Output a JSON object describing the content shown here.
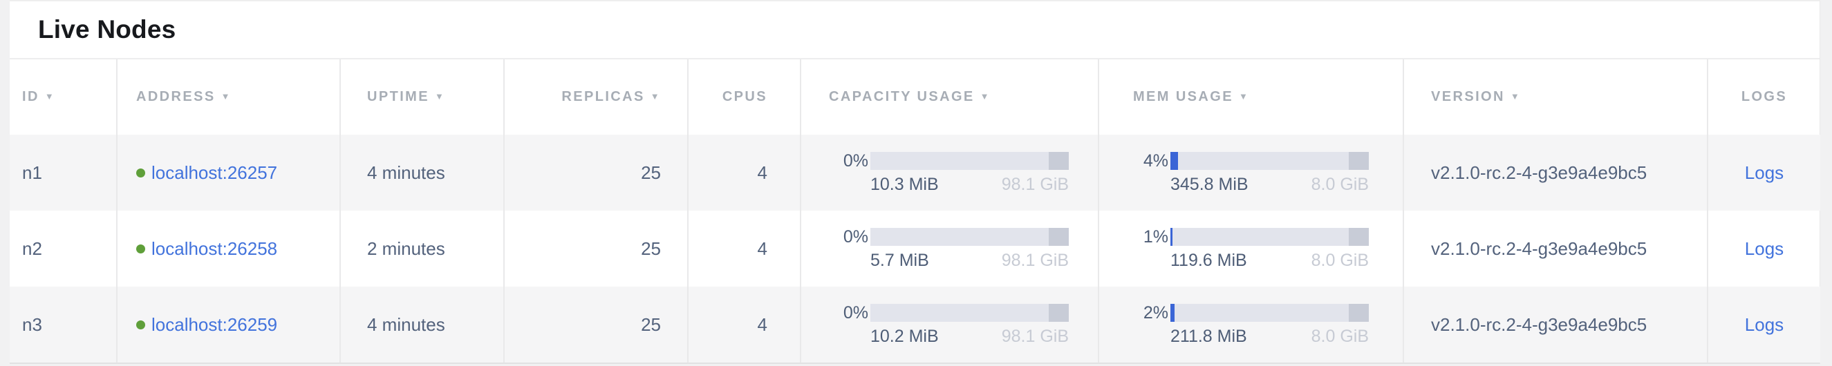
{
  "title": "Live Nodes",
  "colors": {
    "link_blue": "#4273dc",
    "bar_fill_blue": "#3b65d6",
    "bar_track": "#e2e4ec",
    "bar_tail_gray": "#c8ccd7",
    "status_live_green": "#5f9f3a",
    "header_gray": "#a7adb5",
    "body_text": "#53627c",
    "row_alt_bg": "#f5f5f6"
  },
  "table": {
    "sort_indicator": "▼",
    "columns": [
      {
        "key": "id",
        "label": "ID",
        "sortable": true
      },
      {
        "key": "address",
        "label": "ADDRESS",
        "sortable": true
      },
      {
        "key": "uptime",
        "label": "UPTIME",
        "sortable": true
      },
      {
        "key": "replicas",
        "label": "REPLICAS",
        "sortable": true
      },
      {
        "key": "cpus",
        "label": "CPUS",
        "sortable": false
      },
      {
        "key": "capacity",
        "label": "CAPACITY USAGE",
        "sortable": true
      },
      {
        "key": "mem",
        "label": "MEM USAGE",
        "sortable": true
      },
      {
        "key": "version",
        "label": "VERSION",
        "sortable": true
      },
      {
        "key": "logs",
        "label": "LOGS",
        "sortable": false
      }
    ],
    "rows": [
      {
        "id": "n1",
        "status": "live",
        "address": "localhost:26257",
        "uptime": "4 minutes",
        "replicas": "25",
        "cpus": "4",
        "capacity": {
          "percent": "0%",
          "percent_value": 0,
          "used": "10.3 MiB",
          "total": "98.1 GiB"
        },
        "mem": {
          "percent": "4%",
          "percent_value": 4,
          "used": "345.8 MiB",
          "total": "8.0 GiB"
        },
        "version": "v2.1.0-rc.2-4-g3e9a4e9bc5",
        "logs_label": "Logs"
      },
      {
        "id": "n2",
        "status": "live",
        "address": "localhost:26258",
        "uptime": "2 minutes",
        "replicas": "25",
        "cpus": "4",
        "capacity": {
          "percent": "0%",
          "percent_value": 0,
          "used": "5.7 MiB",
          "total": "98.1 GiB"
        },
        "mem": {
          "percent": "1%",
          "percent_value": 1,
          "used": "119.6 MiB",
          "total": "8.0 GiB"
        },
        "version": "v2.1.0-rc.2-4-g3e9a4e9bc5",
        "logs_label": "Logs"
      },
      {
        "id": "n3",
        "status": "live",
        "address": "localhost:26259",
        "uptime": "4 minutes",
        "replicas": "25",
        "cpus": "4",
        "capacity": {
          "percent": "0%",
          "percent_value": 0,
          "used": "10.2 MiB",
          "total": "98.1 GiB"
        },
        "mem": {
          "percent": "2%",
          "percent_value": 2,
          "used": "211.8 MiB",
          "total": "8.0 GiB"
        },
        "version": "v2.1.0-rc.2-4-g3e9a4e9bc5",
        "logs_label": "Logs"
      }
    ]
  }
}
